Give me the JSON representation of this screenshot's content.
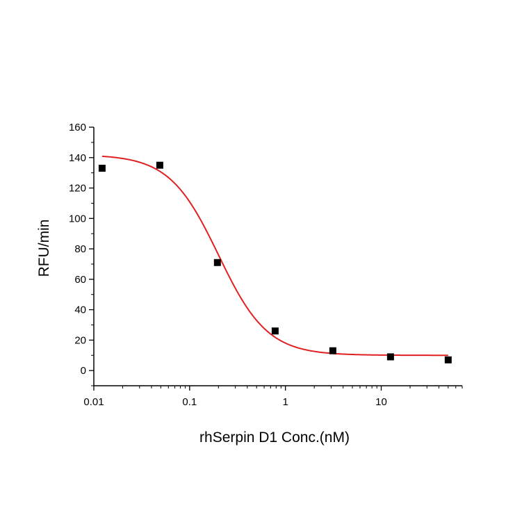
{
  "chart_data": {
    "type": "scatter",
    "title": "",
    "xlabel": "rhSerpin D1 Conc.(nM)",
    "ylabel": "RFU/min",
    "x_scale": "log",
    "xlim": [
      0.01,
      70
    ],
    "ylim": [
      -10,
      160
    ],
    "x_ticks": [
      0.01,
      0.1,
      1,
      10
    ],
    "x_tick_labels": [
      "0.01",
      "0.1",
      "1",
      "10"
    ],
    "y_ticks": [
      0,
      20,
      40,
      60,
      80,
      100,
      120,
      140,
      160
    ],
    "y_tick_labels": [
      "0",
      "20",
      "40",
      "60",
      "80",
      "100",
      "120",
      "140",
      "160"
    ],
    "grid": false,
    "legend": "none",
    "series": [
      {
        "kind": "points",
        "marker": "square",
        "color": "#000000",
        "points": [
          {
            "x": 0.0122,
            "y": 133
          },
          {
            "x": 0.0488,
            "y": 135
          },
          {
            "x": 0.195,
            "y": 71
          },
          {
            "x": 0.781,
            "y": 26
          },
          {
            "x": 3.125,
            "y": 13
          },
          {
            "x": 12.5,
            "y": 9
          },
          {
            "x": 50,
            "y": 7
          }
        ]
      },
      {
        "kind": "fit-curve",
        "model": "four-parameter-logistic",
        "color": "#e02020",
        "top": 142,
        "bottom": 10,
        "ec50": 0.2,
        "hill": 1.7,
        "x_range": [
          0.0122,
          50
        ]
      }
    ]
  }
}
